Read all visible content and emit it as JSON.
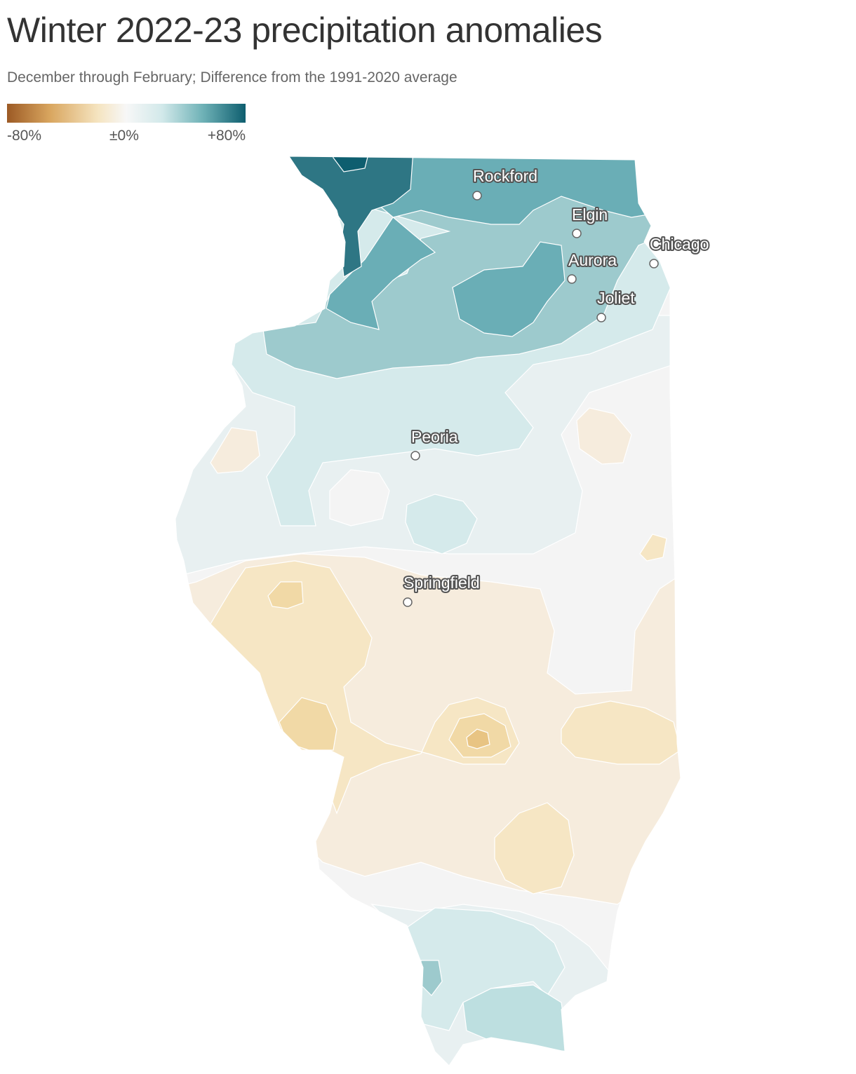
{
  "header": {
    "title": "Winter 2022-23 precipitation anomalies",
    "subtitle": "December through February; Difference from the 1991-2020 average"
  },
  "legend": {
    "min_label": "-80%",
    "mid_label": "±0%",
    "max_label": "+80%",
    "gradient_colors": [
      "#9c5a25",
      "#d9a65f",
      "#f5e4c0",
      "#f7f7f7",
      "#d2e9ea",
      "#6fb2b7",
      "#0e5e6f"
    ]
  },
  "palette": {
    "dark_wet": "#0e5e6f",
    "wet_4": "#2e7684",
    "wet_3": "#6aaeb6",
    "wet_2": "#9dcacd",
    "wet_1": "#d5eaeb",
    "near_zero_wet": "#e8f0f1",
    "neutral": "#f4f4f4",
    "dry_1": "#f6ecdd",
    "dry_2": "#f6e6c4",
    "dry_3": "#f1d9a6",
    "dry_4": "#e8c483"
  },
  "cities": [
    {
      "name": "Rockford"
    },
    {
      "name": "Elgin"
    },
    {
      "name": "Chicago"
    },
    {
      "name": "Aurora"
    },
    {
      "name": "Joliet"
    },
    {
      "name": "Peoria"
    },
    {
      "name": "Springfield"
    }
  ]
}
